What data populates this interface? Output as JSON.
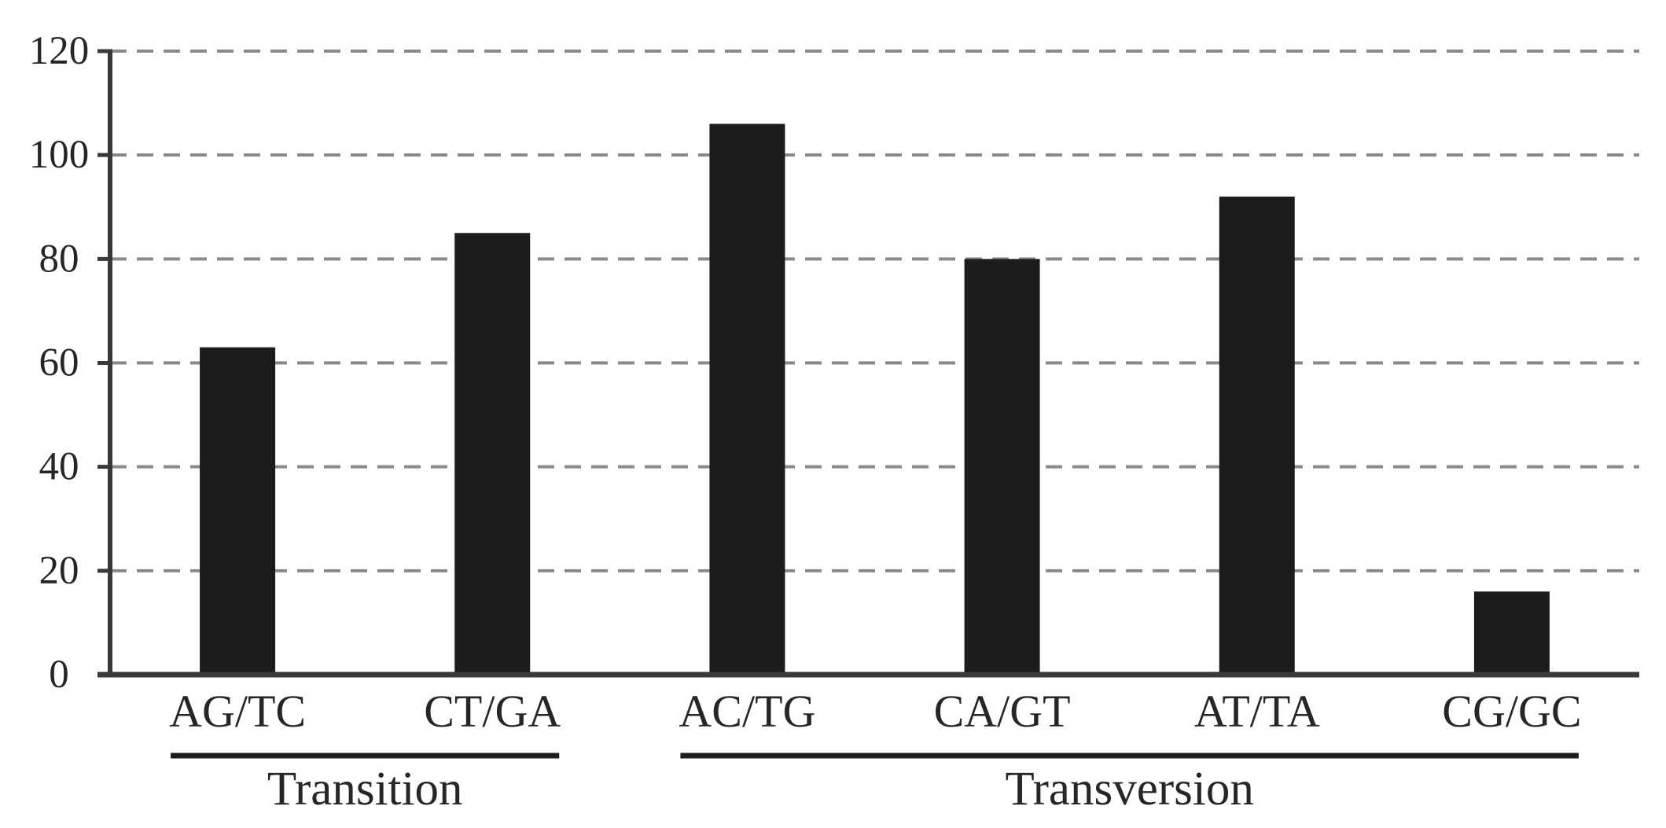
{
  "chart_data": {
    "type": "bar",
    "title": "",
    "categories": [
      "AG/TC",
      "CT/GA",
      "AC/TG",
      "CA/GT",
      "AT/TA",
      "CG/GC"
    ],
    "values": [
      63,
      85,
      106,
      80,
      92,
      16
    ],
    "series_note": "single series, solid black bars",
    "groups": [
      {
        "label": "Transition",
        "from_index": 0,
        "to_index": 1
      },
      {
        "label": "Transversion",
        "from_index": 2,
        "to_index": 5
      }
    ],
    "y_axis": {
      "min": 0,
      "max": 120,
      "step": 20,
      "tick_labels": [
        "0",
        "20",
        "40",
        "60",
        "80",
        "100",
        "120"
      ]
    },
    "xlabel": "",
    "ylabel": "",
    "grid": "horizontal dashed gridlines at each y tick, none at 0",
    "legend": "none",
    "colors": {
      "bar": "#1e1b1c",
      "axis": "#383838",
      "gridline": "#8a8a8a",
      "text": "#262626",
      "group_line": "#1e1b1c",
      "background": "#ffffff"
    }
  }
}
